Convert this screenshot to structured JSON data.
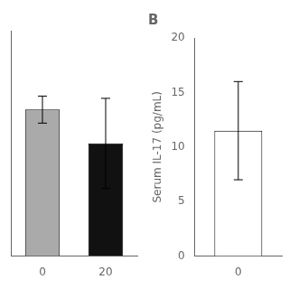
{
  "chart_data": [
    {
      "type": "bar",
      "categories": [
        "0",
        "20"
      ],
      "values": [
        13.0,
        10.0
      ],
      "errors": [
        1.2,
        4.0
      ],
      "colors": [
        "#aaaaaa",
        "#111111"
      ],
      "ylim": [
        0,
        20
      ],
      "tick_labels": "x",
      "grid": false
    },
    {
      "type": "bar",
      "title": "B",
      "categories": [
        "0"
      ],
      "values": [
        11.5
      ],
      "errors": [
        4.5
      ],
      "colors": [
        "#ffffff"
      ],
      "ylabel": "Serum IL-17 (pg/mL)",
      "ylim": [
        0,
        20
      ],
      "yticks": [
        0,
        5,
        10,
        15,
        20
      ],
      "grid": false
    }
  ]
}
